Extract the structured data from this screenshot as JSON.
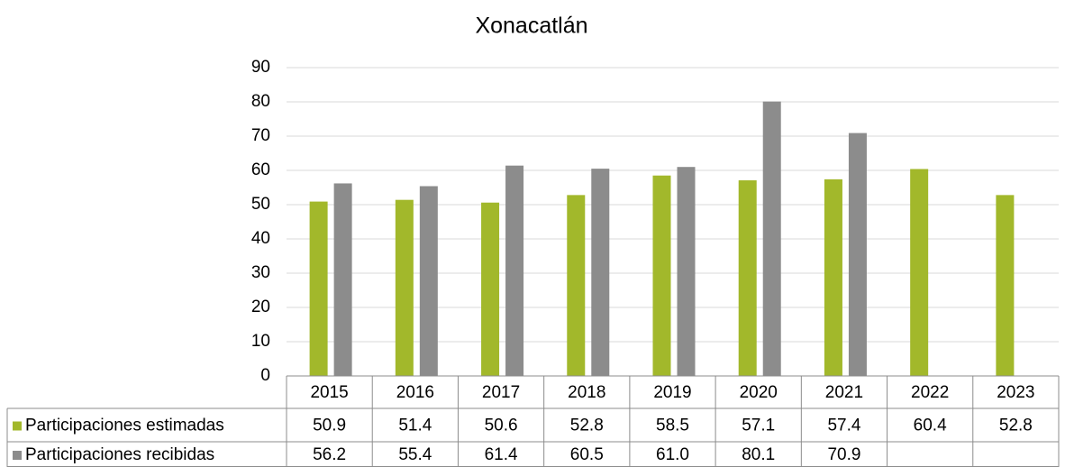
{
  "chart_data": {
    "type": "bar",
    "title": "Xonacatlán",
    "categories": [
      "2015",
      "2016",
      "2017",
      "2018",
      "2019",
      "2020",
      "2021",
      "2022",
      "2023"
    ],
    "series": [
      {
        "name": "Participaciones estimadas",
        "color": "#a2b82b",
        "values": [
          50.9,
          51.4,
          50.6,
          52.8,
          58.5,
          57.1,
          57.4,
          60.4,
          52.8
        ],
        "value_labels": [
          "50.9",
          "51.4",
          "50.6",
          "52.8",
          "58.5",
          "57.1",
          "57.4",
          "60.4",
          "52.8"
        ]
      },
      {
        "name": "Participaciones recibidas",
        "color": "#8c8c8c",
        "values": [
          56.2,
          55.4,
          61.4,
          60.5,
          61.0,
          80.1,
          70.9,
          null,
          null
        ],
        "value_labels": [
          "56.2",
          "55.4",
          "61.4",
          "60.5",
          "61.0",
          "80.1",
          "70.9",
          null,
          null
        ]
      }
    ],
    "ylim": [
      0,
      90
    ],
    "yticks": [
      0,
      10,
      20,
      30,
      40,
      50,
      60,
      70,
      80,
      90
    ],
    "grid": true
  }
}
